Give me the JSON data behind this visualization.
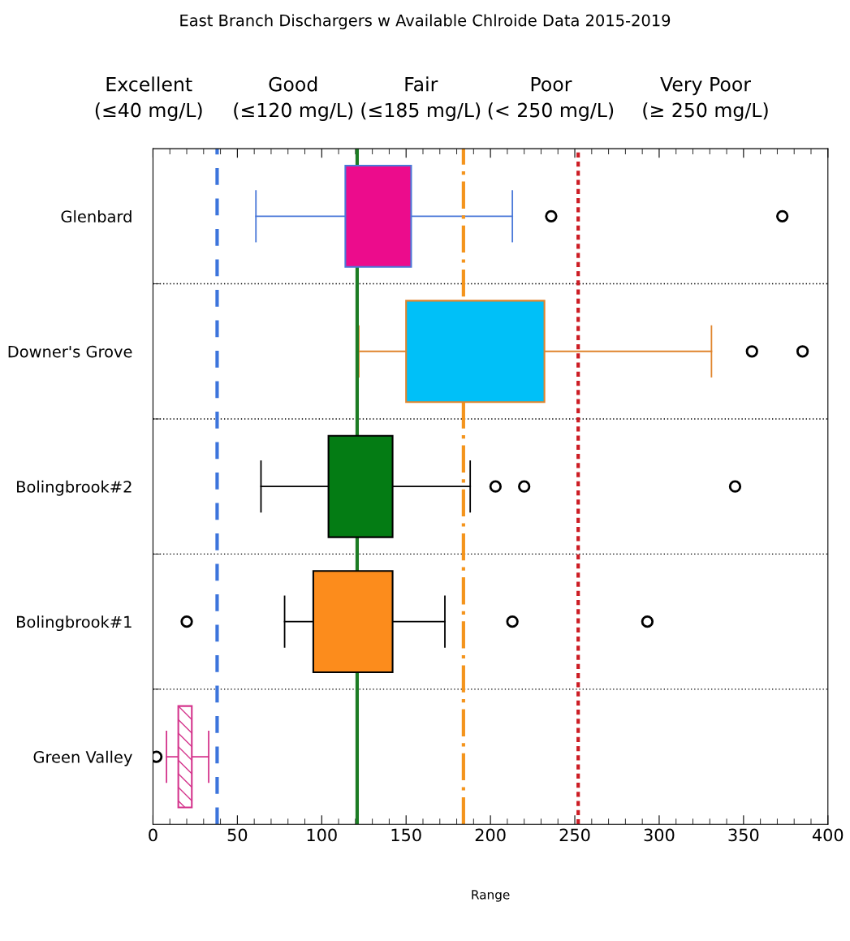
{
  "chart_data": {
    "type": "box",
    "orientation": "horizontal",
    "title": "East Branch Dischargers w Available Chlroide Data 2015-2019",
    "xlabel": "Range",
    "categories": [
      "Glenbard",
      "Downer's Grove",
      "Bolingbrook#2",
      "Bolingbrook#1",
      "Green Valley"
    ],
    "boxes": [
      {
        "low": 61,
        "q1": 114,
        "median": 129,
        "q3": 153,
        "high": 213,
        "outliers": [
          236,
          373
        ]
      },
      {
        "low": 122,
        "q1": 150,
        "median": 173,
        "q3": 232,
        "high": 331,
        "outliers": [
          355,
          385
        ]
      },
      {
        "low": 64,
        "q1": 104,
        "median": 119,
        "q3": 142,
        "high": 188,
        "outliers": [
          203,
          220,
          345
        ]
      },
      {
        "low": 78,
        "q1": 95,
        "median": 108,
        "q3": 142,
        "high": 173,
        "outliers": [
          20,
          213,
          293
        ]
      },
      {
        "low": 8,
        "q1": 15,
        "median": 18,
        "q3": 23,
        "high": 33,
        "outliers": [
          2
        ]
      }
    ],
    "colors": [
      "#ec0c8c",
      "#00c0f8",
      "#047c14",
      "#fc8c1c",
      "#d4348c"
    ],
    "xlim": [
      0,
      400
    ],
    "xticks": [
      0,
      50,
      100,
      150,
      200,
      250,
      300,
      350,
      400
    ],
    "grid": "y",
    "ref_lines": [
      {
        "axis": "x",
        "value": 38,
        "label": null,
        "color": "#3c74dc",
        "line_style": "dashed"
      },
      {
        "axis": "x",
        "value": 121,
        "label": null,
        "color": "#1c7c24",
        "line_style": "solid"
      },
      {
        "axis": "x",
        "value": 184,
        "label": null,
        "color": "#f4941c",
        "line_style": "dashdot"
      },
      {
        "axis": "x",
        "value": 252,
        "label": null,
        "color": "#cc1c24",
        "line_style": "dotted"
      }
    ],
    "annotations": [
      "Excellent\n(≤40 mg/L)",
      "Good\n(≤120 mg/L)",
      "Fair\n(≤185 mg/L)",
      "Poor\n(< 250 mg/L)",
      "Very Poor\n(≥ 250 mg/L)"
    ]
  }
}
